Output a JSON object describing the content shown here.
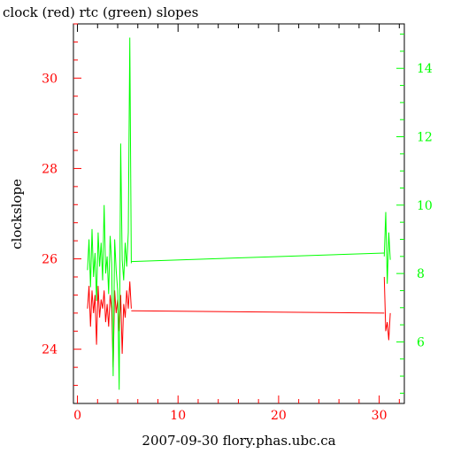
{
  "chart_data": {
    "type": "line",
    "title": "clock (red) rtc (green) slopes",
    "xlabel": "2007-09-30 flory.phas.ubc.ca",
    "ylabel": "clockslope",
    "xlim": [
      -0.4,
      32.5
    ],
    "ylim_left": [
      22.8,
      31.2
    ],
    "ylim_right": [
      4.2,
      15.3
    ],
    "x_ticks": [
      0,
      10,
      20,
      30
    ],
    "y_ticks_left": [
      24,
      26,
      28,
      30
    ],
    "y_ticks_right": [
      6,
      8,
      10,
      12,
      14
    ],
    "colors": {
      "clock": "#ff0000",
      "rtc": "#00ff00",
      "frame": "#000000"
    },
    "series": [
      {
        "name": "clock (red)",
        "axis": "left",
        "x": [
          1.0,
          1.15,
          1.3,
          1.45,
          1.6,
          1.75,
          1.9,
          2.05,
          2.2,
          2.35,
          2.5,
          2.65,
          2.8,
          2.95,
          3.1,
          3.25,
          3.4,
          3.55,
          3.7,
          3.85,
          4.0,
          4.15,
          4.3,
          4.45,
          4.6,
          4.75,
          4.9,
          5.05,
          5.2,
          5.35,
          30.5,
          30.65,
          30.8,
          30.95,
          31.1
        ],
        "y": [
          24.9,
          25.4,
          24.5,
          25.3,
          24.8,
          25.2,
          24.1,
          25.4,
          24.7,
          25.1,
          24.9,
          25.3,
          24.6,
          25.0,
          24.5,
          25.2,
          24.9,
          23.6,
          25.3,
          24.8,
          25.1,
          24.4,
          25.2,
          23.9,
          25.0,
          24.7,
          25.3,
          24.9,
          25.5,
          24.9,
          25.6,
          24.4,
          24.6,
          24.2,
          24.8
        ]
      },
      {
        "name": "rtc (green)",
        "axis": "right",
        "x": [
          1.0,
          1.15,
          1.3,
          1.45,
          1.6,
          1.75,
          1.9,
          2.05,
          2.2,
          2.35,
          2.5,
          2.65,
          2.8,
          2.95,
          3.1,
          3.25,
          3.4,
          3.55,
          3.7,
          3.85,
          4.0,
          4.15,
          4.3,
          4.45,
          4.6,
          4.75,
          4.9,
          5.05,
          5.2,
          5.35,
          30.5,
          30.65,
          30.8,
          30.95,
          31.1
        ],
        "y": [
          8.1,
          9.0,
          7.6,
          9.3,
          7.9,
          8.6,
          7.2,
          9.2,
          8.2,
          8.9,
          7.8,
          10.0,
          8.0,
          8.5,
          7.4,
          9.1,
          8.3,
          5.0,
          9.0,
          8.1,
          7.5,
          4.6,
          11.8,
          8.4,
          7.8,
          8.9,
          8.2,
          9.2,
          14.9,
          8.3,
          8.5,
          9.8,
          7.7,
          9.2,
          8.4
        ]
      }
    ],
    "trend_segments": [
      {
        "series": "clock (red)",
        "axis": "left",
        "x": [
          5.35,
          30.5
        ],
        "y": [
          24.85,
          24.8
        ]
      },
      {
        "series": "rtc (green)",
        "axis": "right",
        "x": [
          5.35,
          30.5
        ],
        "y": [
          8.35,
          8.6
        ]
      }
    ]
  }
}
